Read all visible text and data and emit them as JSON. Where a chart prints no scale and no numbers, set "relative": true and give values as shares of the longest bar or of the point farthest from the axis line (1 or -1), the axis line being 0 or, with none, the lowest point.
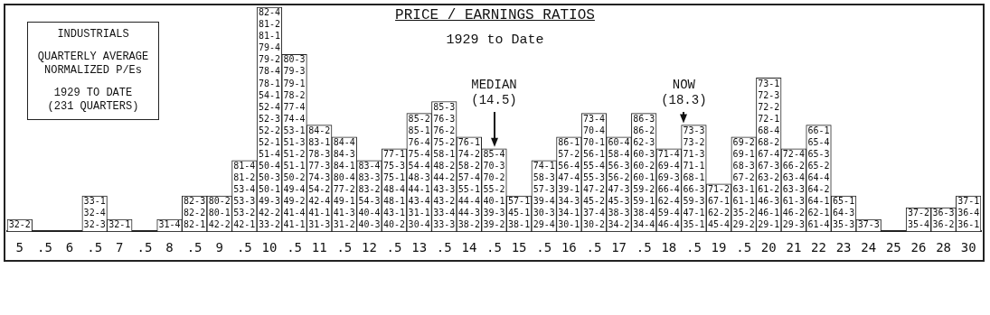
{
  "chart_data": {
    "type": "bar",
    "title": "PRICE / EARNINGS RATIOS",
    "subtitle": "1929 to Date",
    "annotations": [
      "INDUSTRIALS",
      "QUARTERLY AVERAGE",
      "NORMALIZED P/Es",
      "1929 TO DATE",
      "(231 QUARTERS)",
      {
        "text": "MEDIAN (14.5)"
      },
      {
        "text": "NOW (18.3)"
      }
    ],
    "relative": true,
    "categories": [
      "5",
      ".5",
      "6",
      ".5",
      "7",
      ".5",
      "8",
      ".5",
      "9",
      ".5",
      "10",
      ".5",
      "11",
      ".5",
      "12",
      ".5",
      "13",
      ".5",
      "14",
      ".5",
      "15",
      ".5",
      "16",
      ".5",
      "17",
      ".5",
      "18",
      ".5",
      "19",
      ".5",
      "20",
      "21",
      "22",
      "23",
      "24",
      "25",
      "26",
      "28",
      "30"
    ],
    "values": [
      0.053,
      0,
      0,
      0.158,
      0.053,
      0,
      0.053,
      0.158,
      0.158,
      0.316,
      1,
      0.789,
      0.474,
      0.421,
      0.316,
      0.368,
      0.526,
      0.579,
      0.421,
      0.368,
      0.158,
      0.316,
      0.421,
      0.526,
      0.421,
      0.526,
      0.368,
      0.474,
      0.211,
      0.421,
      0.684,
      0.368,
      0.474,
      0.158,
      0.053,
      0,
      0.105,
      0.105,
      0.158
    ],
    "color": "#ffffff",
    "grid": false,
    "legend": false,
    "value_labels": [
      [
        "32-2"
      ],
      null,
      null,
      [
        "33-1",
        "32-4",
        "32-3"
      ],
      [
        "32-1"
      ],
      null,
      [
        "31-4"
      ],
      [
        "82-3",
        "82-2",
        "82-1"
      ],
      [
        "80-2",
        "80-1",
        "42-2"
      ],
      [
        "81-4",
        "81-2",
        "53-4",
        "53-3",
        "53-2",
        "42-1"
      ],
      [
        "82-4",
        "81-2",
        "81-1",
        "79-4",
        "79-2",
        "78-4",
        "78-1",
        "54-1",
        "52-4",
        "52-3",
        "52-2",
        "52-1",
        "51-4",
        "50-4",
        "50-3",
        "50-1",
        "49-3",
        "42-2",
        "33-2"
      ],
      [
        "80-3",
        "79-3",
        "79-1",
        "78-2",
        "77-4",
        "74-4",
        "53-1",
        "51-3",
        "51-2",
        "51-1",
        "50-2",
        "49-4",
        "49-2",
        "41-4",
        "41-1"
      ],
      [
        "84-2",
        "83-1",
        "78-3",
        "77-3",
        "74-3",
        "54-2",
        "42-4",
        "41-1",
        "31-3"
      ],
      [
        "84-4",
        "84-3",
        "84-1",
        "80-4",
        "77-2",
        "49-1",
        "41-3",
        "31-2"
      ],
      [
        "83-4",
        "83-3",
        "83-2",
        "54-3",
        "40-4",
        "40-3"
      ],
      [
        "77-1",
        "75-3",
        "75-1",
        "48-4",
        "48-1",
        "43-1",
        "40-2"
      ],
      [
        "85-2",
        "85-1",
        "76-4",
        "75-4",
        "54-4",
        "48-3",
        "44-1",
        "43-4",
        "31-1",
        "30-4"
      ],
      [
        "85-3",
        "76-3",
        "76-2",
        "75-2",
        "58-1",
        "48-2",
        "44-2",
        "43-3",
        "43-2",
        "33-4",
        "33-3"
      ],
      [
        "76-1",
        "74-2",
        "58-2",
        "57-4",
        "55-1",
        "44-4",
        "44-3",
        "38-2"
      ],
      [
        "85-4",
        "70-3",
        "70-2",
        "55-2",
        "40-1",
        "39-3",
        "39-2"
      ],
      [
        "57-1",
        "45-1",
        "38-1"
      ],
      [
        "74-1",
        "58-3",
        "57-3",
        "39-4",
        "30-3",
        "29-4"
      ],
      [
        "86-1",
        "57-2",
        "56-4",
        "47-4",
        "39-1",
        "34-3",
        "34-1",
        "30-1"
      ],
      [
        "73-4",
        "70-4",
        "70-1",
        "56-1",
        "55-4",
        "55-3",
        "47-2",
        "45-2",
        "37-4",
        "30-2"
      ],
      [
        "60-4",
        "58-4",
        "56-3",
        "56-2",
        "47-3",
        "45-3",
        "38-3",
        "34-2"
      ],
      [
        "86-3",
        "86-2",
        "62-3",
        "60-3",
        "60-2",
        "60-1",
        "59-2",
        "59-1",
        "38-4",
        "34-4"
      ],
      [
        "71-4",
        "69-4",
        "69-3",
        "66-4",
        "62-4",
        "59-4",
        "46-4"
      ],
      [
        "73-3",
        "73-2",
        "71-3",
        "71-1",
        "68-1",
        "66-3",
        "59-3",
        "47-1",
        "35-1"
      ],
      [
        "71-2",
        "67-1",
        "62-2",
        "45-4"
      ],
      [
        "69-2",
        "69-1",
        "68-3",
        "67-2",
        "63-1",
        "61-1",
        "35-2",
        "29-2"
      ],
      [
        "73-1",
        "72-3",
        "72-2",
        "72-1",
        "68-4",
        "68-2",
        "67-4",
        "67-3",
        "63-2",
        "61-2",
        "46-3",
        "46-1",
        "29-1"
      ],
      [
        "72-4",
        "66-2",
        "63-4",
        "63-3",
        "61-3",
        "46-2",
        "29-3"
      ],
      [
        "66-1",
        "65-4",
        "65-3",
        "65-2",
        "64-4",
        "64-2",
        "64-1",
        "62-1",
        "61-4"
      ],
      [
        "65-1",
        "64-3",
        "35-3"
      ],
      [
        "37-3"
      ],
      null,
      [
        "37-2",
        "35-4"
      ],
      [
        "36-3",
        "36-2"
      ],
      [
        "37-1",
        "36-4",
        "36-1"
      ]
    ]
  }
}
